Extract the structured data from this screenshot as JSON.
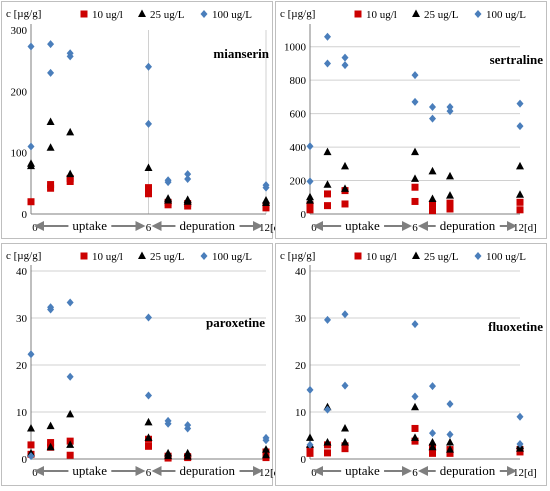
{
  "legend": {
    "marker_colors": {
      "10": "#cc0000",
      "25": "#000000",
      "100": "#4a7ebb"
    }
  },
  "phases": {
    "uptake": "uptake",
    "depuration": "depuration"
  },
  "chart_data": [
    {
      "type": "scatter",
      "title": "mianserin",
      "ylabel": "c [µg/g]",
      "ylim": [
        0,
        300
      ],
      "yticks": [
        "0",
        "100",
        "200",
        "300"
      ],
      "xlim": [
        0,
        12
      ],
      "xticks": [
        {
          "x": 0,
          "label": "0"
        },
        {
          "x": 6,
          "label": "6"
        },
        {
          "x": 12,
          "label": "12[d]"
        }
      ],
      "grid": "vertical",
      "legend_position": "top",
      "series": [
        {
          "name": "10 ug/l",
          "marker": "square",
          "color": "#cc0000",
          "points": [
            [
              0,
              20
            ],
            [
              1,
              42
            ],
            [
              1,
              48
            ],
            [
              2,
              53
            ],
            [
              2,
              58
            ],
            [
              6,
              33
            ],
            [
              6,
              43
            ],
            [
              7,
              15
            ],
            [
              7,
              19
            ],
            [
              8,
              13
            ],
            [
              8,
              17
            ],
            [
              12,
              10
            ],
            [
              12,
              14
            ]
          ]
        },
        {
          "name": "25 ug/L",
          "marker": "triangle",
          "color": "#000000",
          "points": [
            [
              0,
              78
            ],
            [
              0,
              82
            ],
            [
              1,
              108
            ],
            [
              1,
              150
            ],
            [
              2,
              65
            ],
            [
              2,
              133
            ],
            [
              6,
              75
            ],
            [
              7,
              22
            ],
            [
              7,
              25
            ],
            [
              8,
              20
            ],
            [
              8,
              23
            ],
            [
              12,
              18
            ],
            [
              12,
              22
            ]
          ]
        },
        {
          "name": "100 ug/L",
          "marker": "diamond",
          "color": "#4a7ebb",
          "points": [
            [
              0,
              110
            ],
            [
              0,
              273
            ],
            [
              1,
              230
            ],
            [
              1,
              277
            ],
            [
              2,
              257
            ],
            [
              2,
              262
            ],
            [
              6,
              147
            ],
            [
              6,
              240
            ],
            [
              7,
              52
            ],
            [
              7,
              55
            ],
            [
              8,
              57
            ],
            [
              8,
              65
            ],
            [
              12,
              43
            ],
            [
              12,
              47
            ]
          ]
        }
      ]
    },
    {
      "type": "scatter",
      "title": "sertraline",
      "ylabel": "c [µg/g]",
      "ylim": [
        0,
        1100
      ],
      "yticks": [
        "0",
        "200",
        "400",
        "600",
        "800",
        "1000"
      ],
      "xlim": [
        0,
        12
      ],
      "xticks": [
        {
          "x": 0,
          "label": "0"
        },
        {
          "x": 6,
          "label": "6"
        },
        {
          "x": 12,
          "label": "12[d]"
        }
      ],
      "grid": "horizontal",
      "legend_position": "top",
      "series": [
        {
          "name": "10 ug/l",
          "marker": "square",
          "color": "#cc0000",
          "points": [
            [
              0,
              25
            ],
            [
              0,
              55
            ],
            [
              1,
              50
            ],
            [
              1,
              120
            ],
            [
              2,
              60
            ],
            [
              2,
              140
            ],
            [
              6,
              75
            ],
            [
              6,
              160
            ],
            [
              7,
              20
            ],
            [
              7,
              60
            ],
            [
              8,
              30
            ],
            [
              8,
              65
            ],
            [
              12,
              25
            ],
            [
              12,
              70
            ]
          ]
        },
        {
          "name": "25 ug/L",
          "marker": "triangle",
          "color": "#000000",
          "points": [
            [
              0,
              80
            ],
            [
              0,
              100
            ],
            [
              1,
              175
            ],
            [
              1,
              370
            ],
            [
              2,
              150
            ],
            [
              2,
              285
            ],
            [
              6,
              210
            ],
            [
              6,
              370
            ],
            [
              7,
              90
            ],
            [
              7,
              255
            ],
            [
              8,
              110
            ],
            [
              8,
              225
            ],
            [
              12,
              115
            ],
            [
              12,
              285
            ]
          ]
        },
        {
          "name": "100 ug/L",
          "marker": "diamond",
          "color": "#4a7ebb",
          "points": [
            [
              0,
              195
            ],
            [
              0,
              405
            ],
            [
              1,
              900
            ],
            [
              1,
              1060
            ],
            [
              2,
              890
            ],
            [
              2,
              935
            ],
            [
              6,
              670
            ],
            [
              6,
              830
            ],
            [
              7,
              570
            ],
            [
              7,
              640
            ],
            [
              8,
              615
            ],
            [
              8,
              640
            ],
            [
              12,
              525
            ],
            [
              12,
              660
            ]
          ]
        }
      ]
    },
    {
      "type": "scatter",
      "title": "paroxetine",
      "ylabel": "c [µg/g]",
      "ylim": [
        0,
        40
      ],
      "yticks": [
        "0",
        "10",
        "20",
        "30",
        "40"
      ],
      "xlim": [
        0,
        12
      ],
      "xticks": [
        {
          "x": 0,
          "label": "0"
        },
        {
          "x": 6,
          "label": "6"
        },
        {
          "x": 12,
          "label": "12[d]"
        }
      ],
      "grid": "horizontal",
      "legend_position": "top",
      "series": [
        {
          "name": "10 ug/l",
          "marker": "square",
          "color": "#cc0000",
          "points": [
            [
              0,
              1
            ],
            [
              0,
              3
            ],
            [
              1,
              2.5
            ],
            [
              1,
              3.5
            ],
            [
              2,
              0.8
            ],
            [
              2,
              3.8
            ],
            [
              6,
              2.7
            ],
            [
              6,
              4.2
            ],
            [
              7,
              0.2
            ],
            [
              7,
              0.6
            ],
            [
              8,
              0.3
            ],
            [
              8,
              0.5
            ],
            [
              12,
              0.3
            ],
            [
              12,
              1.5
            ]
          ]
        },
        {
          "name": "25 ug/L",
          "marker": "triangle",
          "color": "#000000",
          "points": [
            [
              0,
              1.2
            ],
            [
              0,
              6.5
            ],
            [
              1,
              2.5
            ],
            [
              1,
              7
            ],
            [
              2,
              3
            ],
            [
              2,
              9.5
            ],
            [
              6,
              4.5
            ],
            [
              6,
              7.8
            ],
            [
              7,
              0.6
            ],
            [
              7,
              1.2
            ],
            [
              8,
              0.5
            ],
            [
              8,
              1.2
            ],
            [
              12,
              0.8
            ],
            [
              12,
              2
            ]
          ]
        },
        {
          "name": "100 ug/L",
          "marker": "diamond",
          "color": "#4a7ebb",
          "points": [
            [
              0,
              0.6
            ],
            [
              0,
              22.3
            ],
            [
              1,
              31.8
            ],
            [
              1,
              32.3
            ],
            [
              2,
              17.5
            ],
            [
              2,
              33.3
            ],
            [
              6,
              13.5
            ],
            [
              6,
              30.1
            ],
            [
              7,
              7.5
            ],
            [
              7,
              8.1
            ],
            [
              8,
              6.5
            ],
            [
              8,
              7.2
            ],
            [
              12,
              4
            ],
            [
              12,
              4.5
            ]
          ]
        }
      ]
    },
    {
      "type": "scatter",
      "title": "fluoxetine",
      "ylabel": "c [µg/g]",
      "ylim": [
        0,
        40
      ],
      "yticks": [
        "0",
        "10",
        "20",
        "30",
        "40"
      ],
      "xlim": [
        0,
        12
      ],
      "xticks": [
        {
          "x": 0,
          "label": "0"
        },
        {
          "x": 6,
          "label": "6"
        },
        {
          "x": 12,
          "label": "12[d]"
        }
      ],
      "grid": "horizontal",
      "legend_position": "top",
      "series": [
        {
          "name": "10 ug/l",
          "marker": "square",
          "color": "#cc0000",
          "points": [
            [
              0,
              1.2
            ],
            [
              0,
              2
            ],
            [
              1,
              1.3
            ],
            [
              1,
              3
            ],
            [
              2,
              2.2
            ],
            [
              2,
              2.8
            ],
            [
              6,
              3.8
            ],
            [
              6,
              6.5
            ],
            [
              7,
              1.2
            ],
            [
              7,
              2.5
            ],
            [
              8,
              1.2
            ],
            [
              8,
              2
            ],
            [
              12,
              1.5
            ],
            [
              12,
              2
            ]
          ]
        },
        {
          "name": "25 ug/L",
          "marker": "triangle",
          "color": "#000000",
          "points": [
            [
              0,
              4.5
            ],
            [
              0,
              3
            ],
            [
              1,
              3.5
            ],
            [
              1,
              11
            ],
            [
              2,
              3.5
            ],
            [
              2,
              6.5
            ],
            [
              6,
              4.5
            ],
            [
              6,
              11
            ],
            [
              7,
              2.5
            ],
            [
              7,
              3.5
            ],
            [
              8,
              2
            ],
            [
              8,
              3.5
            ],
            [
              12,
              2.2
            ],
            [
              12,
              2.8
            ]
          ]
        },
        {
          "name": "100 ug/L",
          "marker": "diamond",
          "color": "#4a7ebb",
          "points": [
            [
              0,
              3
            ],
            [
              0,
              14.7
            ],
            [
              1,
              10.5
            ],
            [
              1,
              29.6
            ],
            [
              2,
              15.6
            ],
            [
              2,
              30.8
            ],
            [
              6,
              13.3
            ],
            [
              6,
              28.7
            ],
            [
              7,
              5.5
            ],
            [
              7,
              15.5
            ],
            [
              8,
              5.2
            ],
            [
              8,
              11.7
            ],
            [
              12,
              3.2
            ],
            [
              12,
              9
            ]
          ]
        }
      ]
    }
  ]
}
